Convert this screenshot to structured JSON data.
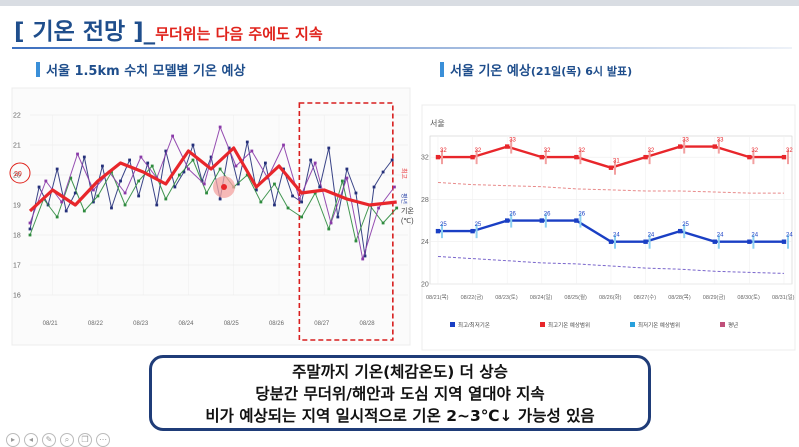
{
  "slide": {
    "title_main": "[ 기온 전망 ]_",
    "title_sub": "무더위는 다음 주에도 지속",
    "left_section_title": "서울 1.5km 수치 모델별  기온 예상",
    "right_section_title_main": "서울 기온 예상",
    "right_section_title_paren": "(21일(목) 6시 발표)",
    "summary_lines": [
      "주말까지 기온(체감온도) 더 상승",
      "당분간 무더위/해안과 도심 지역 열대야 지속",
      "비가 예상되는 지역 일시적으로 기온 2~3℃↓ 가능성 있음"
    ],
    "footer_icon_names": [
      "play-icon",
      "prev-icon",
      "pen-icon",
      "search-icon",
      "copy-icon",
      "menu-icon"
    ]
  },
  "colors": {
    "title_blue": "#1f4e8c",
    "accent_red": "#e0231c",
    "section_bar": "#3a8fd8",
    "box_border": "#1f3c78",
    "max_line": "#e8262b",
    "min_line": "#1a3fc4",
    "model_navy": "#25307a",
    "model_green": "#2e8b3e",
    "model_purple": "#8a3aa8"
  },
  "chart_data": [
    {
      "type": "line",
      "title": "서울 1.5km 수치 모델별  기온 예상",
      "ylim": [
        16,
        22
      ],
      "yticks": [
        "16",
        "17",
        "18",
        "19",
        "20",
        "21",
        "22"
      ],
      "x_labels": [
        "08/21",
        "08/22",
        "08/23",
        "08/24",
        "08/25",
        "08/26",
        "08/27",
        "08/28"
      ],
      "xlim": [
        0,
        8.35
      ],
      "ylabel_text": "기온\n(℃)",
      "legend_vertical": [
        "최고",
        "평년"
      ],
      "circled_value": "20",
      "highlight_box_x": [
        5.95,
        7.75
      ],
      "series": [
        {
          "color": "#e8262b",
          "x": [
            0,
            0.5,
            1,
            1.5,
            2,
            2.5,
            3,
            3.5,
            4,
            4.5,
            5,
            5.5,
            6,
            6.5,
            7,
            7.5,
            8.1
          ],
          "values": [
            18.8,
            19.5,
            19.0,
            19.8,
            20.4,
            20.1,
            19.7,
            20.8,
            20.2,
            20.9,
            19.6,
            20.3,
            19.4,
            19.5,
            19.2,
            19.0,
            19.1
          ]
        },
        {
          "color": "#25307a",
          "x": [
            0,
            0.2,
            0.4,
            0.6,
            0.8,
            1.0,
            1.2,
            1.4,
            1.6,
            1.8,
            2.0,
            2.2,
            2.4,
            2.6,
            2.8,
            3.0,
            3.2,
            3.4,
            3.6,
            3.8,
            4.0,
            4.2,
            4.4,
            4.6,
            4.8,
            5.0,
            5.2,
            5.4,
            5.6,
            5.8,
            6.0,
            6.2,
            6.4,
            6.6,
            6.8,
            7.0,
            7.2,
            7.4,
            7.6,
            7.8,
            8.0
          ],
          "values": [
            18.2,
            19.6,
            19.0,
            20.2,
            18.8,
            19.4,
            20.6,
            19.1,
            20.3,
            18.9,
            19.8,
            20.5,
            19.3,
            20.4,
            19.0,
            20.8,
            19.6,
            20.1,
            21.0,
            19.8,
            20.6,
            19.2,
            20.9,
            19.7,
            21.1,
            19.5,
            20.4,
            19.0,
            20.2,
            19.3,
            19.1,
            20.5,
            19.6,
            20.9,
            18.6,
            20.2,
            19.4,
            17.3,
            19.6,
            20.1,
            20.5
          ]
        },
        {
          "color": "#2e8b3e",
          "x": [
            0,
            0.3,
            0.6,
            0.9,
            1.2,
            1.5,
            1.8,
            2.1,
            2.4,
            2.7,
            3.0,
            3.3,
            3.6,
            3.9,
            4.2,
            4.5,
            4.8,
            5.1,
            5.4,
            5.7,
            6.0,
            6.3,
            6.6,
            6.9,
            7.2,
            7.5,
            7.8,
            8.1
          ],
          "values": [
            18.0,
            19.2,
            18.6,
            19.9,
            18.8,
            19.3,
            20.1,
            19.0,
            19.8,
            20.3,
            19.2,
            20.0,
            20.5,
            19.4,
            20.2,
            19.6,
            20.0,
            19.1,
            19.7,
            18.9,
            18.6,
            19.4,
            18.2,
            19.8,
            17.8,
            19.0,
            18.4,
            18.9
          ]
        },
        {
          "color": "#8a3aa8",
          "x": [
            0,
            0.35,
            0.7,
            1.05,
            1.4,
            1.75,
            2.1,
            2.45,
            2.8,
            3.15,
            3.5,
            3.85,
            4.2,
            4.55,
            4.9,
            5.25,
            5.6,
            5.95,
            6.3,
            6.65,
            7.0,
            7.35,
            7.7,
            8.05
          ],
          "values": [
            18.4,
            19.8,
            19.1,
            20.7,
            19.5,
            20.1,
            19.4,
            20.6,
            19.9,
            21.3,
            20.2,
            19.7,
            21.6,
            20.3,
            20.8,
            19.9,
            21.0,
            19.2,
            20.4,
            18.4,
            19.9,
            17.2,
            18.9,
            19.6
          ]
        }
      ]
    },
    {
      "type": "line",
      "title": "서울 기온 예상(21일(목) 6시 발표)",
      "corner_label": "서울",
      "ylim": [
        20,
        34
      ],
      "yticks": [
        "20",
        "24",
        "28",
        "32"
      ],
      "categories": [
        "08/21(목)",
        "08/22(금)",
        "08/23(토)",
        "08/24(일)",
        "08/25(월)",
        "08/26(화)",
        "08/27(수)",
        "08/28(목)",
        "08/29(금)",
        "08/30(토)",
        "08/31(일)"
      ],
      "series": [
        {
          "name": "최고기온",
          "color": "#e8262b",
          "values": [
            32,
            32,
            33,
            32,
            32,
            31,
            32,
            33,
            33,
            32,
            32
          ]
        },
        {
          "name": "최저기온",
          "color": "#1a3fc4",
          "values": [
            25,
            25,
            26,
            26,
            26,
            24,
            24,
            25,
            24,
            24,
            24
          ]
        },
        {
          "name": "평년",
          "color": "#e88a8a",
          "values": [
            29.6,
            29.4,
            29.3,
            29.2,
            29.0,
            28.9,
            28.8,
            28.8,
            28.7,
            28.6,
            28.6
          ]
        },
        {
          "name": "평년",
          "color": "#7a66cc",
          "values": [
            22.6,
            22.4,
            22.2,
            22.0,
            21.9,
            21.7,
            21.5,
            21.4,
            21.2,
            21.1,
            21.0
          ]
        }
      ],
      "legend": [
        "최고/최저기온",
        "최고기온 예상범위",
        "최저기온 예상범위",
        "평년"
      ]
    }
  ]
}
